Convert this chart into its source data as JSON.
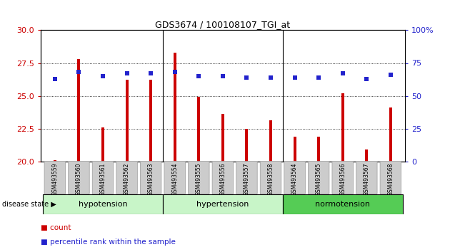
{
  "title": "GDS3674 / 100108107_TGI_at",
  "samples": [
    "GSM493559",
    "GSM493560",
    "GSM493561",
    "GSM493562",
    "GSM493563",
    "GSM493554",
    "GSM493555",
    "GSM493556",
    "GSM493557",
    "GSM493558",
    "GSM493564",
    "GSM493565",
    "GSM493566",
    "GSM493567",
    "GSM493568"
  ],
  "bar_values": [
    20.1,
    27.8,
    22.6,
    26.2,
    26.2,
    28.3,
    24.9,
    23.6,
    22.5,
    23.1,
    21.9,
    21.9,
    25.2,
    20.9,
    24.1
  ],
  "percentile_values": [
    63,
    68,
    65,
    67,
    67,
    68,
    65,
    65,
    64,
    64,
    64,
    64,
    67,
    63,
    66
  ],
  "ylim_left": [
    20,
    30
  ],
  "ylim_right": [
    0,
    100
  ],
  "yticks_left": [
    20,
    22.5,
    25,
    27.5,
    30
  ],
  "yticks_right": [
    0,
    25,
    50,
    75,
    100
  ],
  "bar_color": "#cc0000",
  "dot_color": "#2222cc",
  "hypotension_color": "#c8f5c8",
  "hypertension_color": "#c8f5c8",
  "normotension_color": "#55cc55",
  "tick_bg_color": "#cccccc",
  "groups": [
    {
      "name": "hypotension",
      "start": 0,
      "end": 4,
      "color": "#c8f5c8"
    },
    {
      "name": "hypertension",
      "start": 5,
      "end": 9,
      "color": "#c8f5c8"
    },
    {
      "name": "normotension",
      "start": 10,
      "end": 14,
      "color": "#55cc55"
    }
  ]
}
